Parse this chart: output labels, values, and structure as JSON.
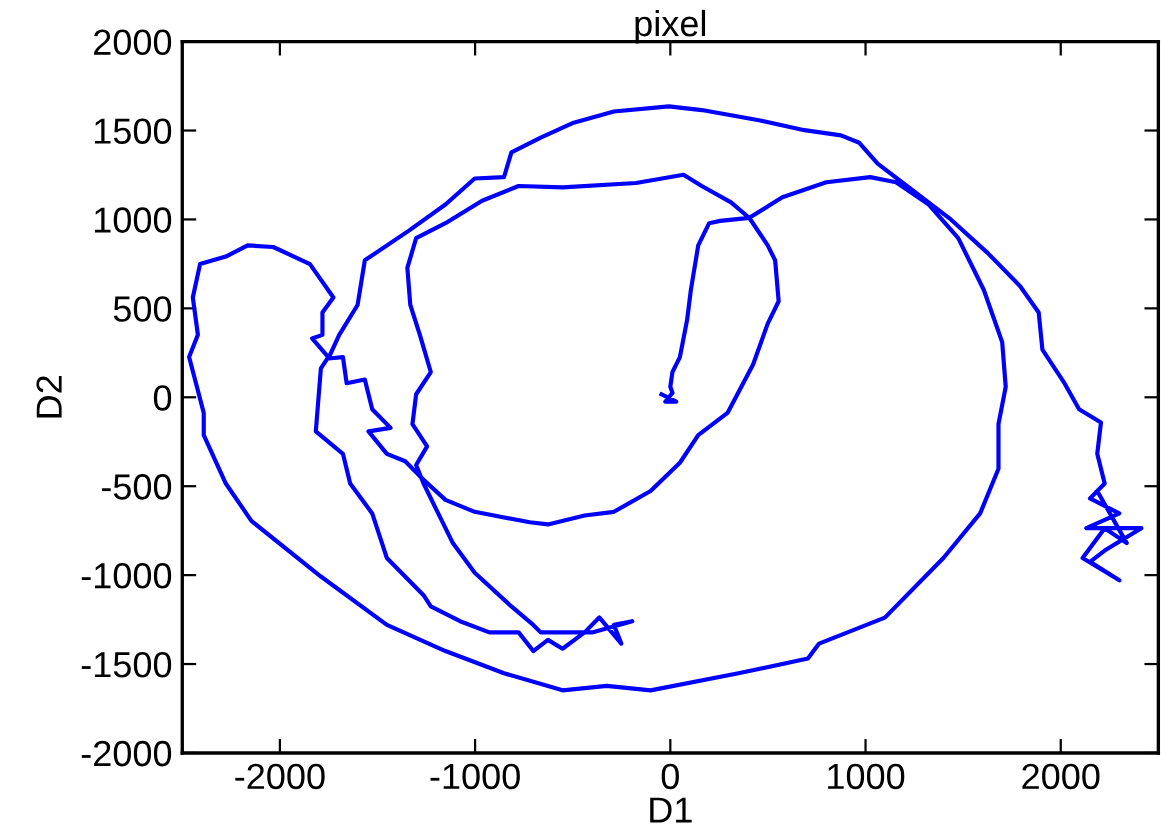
{
  "chart_data": {
    "type": "line",
    "title": "pixel",
    "xlabel": "D1",
    "ylabel": "D2",
    "xlim": [
      -2500,
      2500
    ],
    "ylim": [
      -2000,
      2000
    ],
    "xticks": [
      -2000,
      -1000,
      0,
      1000,
      2000
    ],
    "yticks": [
      -2000,
      -1500,
      -1000,
      -500,
      0,
      500,
      1000,
      1500,
      2000
    ],
    "grid": false,
    "marker": "none",
    "line_style": "solid",
    "series": [
      {
        "color": "#0000ff",
        "x": [
          -45,
          30,
          -26,
          11,
          0,
          11,
          49,
          86,
          105,
          143,
          199,
          255,
          405,
          574,
          799,
          1024,
          1156,
          1324,
          1475,
          1606,
          1700,
          1718,
          1681,
          1681,
          1587,
          1399,
          1099,
          762,
          705,
          349,
          -101,
          -326,
          -552,
          -852,
          -1152,
          -1452,
          -1790,
          -2146,
          -2277,
          -2390,
          -2390,
          -2465,
          -2420,
          -2446,
          -2409,
          -2277,
          -2165,
          -2034,
          -1846,
          -1726,
          -1782,
          -1782,
          -1835,
          -1752,
          -1790,
          -1816,
          -1677,
          -1640,
          -1527,
          -1452,
          -1264,
          -1227,
          -1077,
          -927,
          -777,
          -702,
          -627,
          -552,
          -439,
          -364,
          -251,
          -289,
          -195,
          -401,
          -664,
          -702,
          -814,
          -1002,
          -1114,
          -1189,
          -1264,
          -1302,
          -1246,
          -1321,
          -1302,
          -1227,
          -1283,
          -1332,
          -1347,
          -1302,
          -1152,
          -964,
          -777,
          -552,
          -176,
          68,
          161,
          311,
          405,
          499,
          537,
          555,
          499,
          424,
          293,
          143,
          49,
          -101,
          -289,
          -439,
          -627,
          -720,
          -1002,
          -1152,
          -1264,
          -1358,
          -1452,
          -1546,
          -1433,
          -1527,
          -1565,
          -1658,
          -1677,
          -1752,
          -1696,
          -1602,
          -1565,
          -1339,
          -1152,
          -1002,
          -852,
          -814,
          -664,
          -495,
          -289,
          -8,
          161,
          461,
          687,
          874,
          968,
          1062,
          1212,
          1437,
          1625,
          1793,
          1887,
          1906,
          2019,
          2094,
          2206,
          2187,
          2225,
          2150,
          2300,
          2131,
          2413,
          2225,
          2150,
          2300,
          2112,
          2225,
          2338,
          2187
        ],
        "values": [
          17,
          -25,
          -25,
          25,
          59,
          142,
          226,
          435,
          602,
          854,
          979,
          992,
          1009,
          1125,
          1209,
          1238,
          1209,
          1084,
          895,
          603,
          310,
          59,
          -151,
          -402,
          -653,
          -904,
          -1239,
          -1385,
          -1469,
          -1552,
          -1648,
          -1623,
          -1648,
          -1552,
          -1427,
          -1280,
          -1008,
          -695,
          -485,
          -213,
          -88,
          226,
          351,
          561,
          749,
          791,
          854,
          845,
          749,
          561,
          477,
          351,
          331,
          226,
          163,
          -192,
          -318,
          -485,
          -653,
          -904,
          -1113,
          -1176,
          -1259,
          -1322,
          -1322,
          -1427,
          -1364,
          -1414,
          -1322,
          -1238,
          -1385,
          -1280,
          -1259,
          -1322,
          -1322,
          -1280,
          -1176,
          -987,
          -820,
          -653,
          -485,
          -381,
          -276,
          -151,
          17,
          142,
          351,
          519,
          728,
          895,
          979,
          1105,
          1188,
          1180,
          1205,
          1251,
          1188,
          1096,
          1008,
          854,
          770,
          540,
          414,
          184,
          -88,
          -213,
          -368,
          -527,
          -644,
          -665,
          -715,
          -703,
          -644,
          -577,
          -464,
          -360,
          -318,
          -192,
          -172,
          -67,
          100,
          79,
          226,
          218,
          351,
          519,
          770,
          937,
          1084,
          1230,
          1238,
          1377,
          1460,
          1544,
          1607,
          1636,
          1615,
          1556,
          1502,
          1473,
          1431,
          1314,
          1188,
          1000,
          812,
          623,
          477,
          268,
          79,
          -67,
          -142,
          -318,
          -485,
          -569,
          -653,
          -736,
          -736,
          -862,
          -925,
          -1029,
          -904,
          -736,
          -820,
          -527
        ]
      }
    ]
  }
}
